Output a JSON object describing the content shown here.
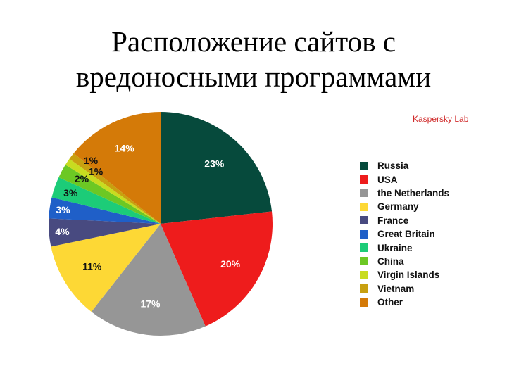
{
  "title": {
    "line1": "Расположение сайтов с",
    "line2": "вредоносными программами"
  },
  "source_label": "Kaspersky Lab",
  "chart_data": {
    "type": "pie",
    "title": "Расположение сайтов с вредоносными программами",
    "source": "Kaspersky Lab",
    "start_angle": "12 o'clock, clockwise",
    "legend_position": "right",
    "categories": [
      "Russia",
      "USA",
      "the Netherlands",
      "Germany",
      "France",
      "Great Britain",
      "Ukraine",
      "China",
      "Virgin Islands",
      "Vietnam",
      "Other"
    ],
    "values": [
      23,
      20,
      17,
      11,
      4,
      3,
      3,
      2,
      1,
      1,
      14
    ],
    "labels": [
      "23%",
      "20%",
      "17%",
      "11%",
      "4%",
      "3%",
      "3%",
      "2%",
      "1%",
      "1%",
      "14%"
    ],
    "colors": [
      "#064a3c",
      "#ee1c1c",
      "#969696",
      "#fdd835",
      "#484a80",
      "#1f5fc8",
      "#1ccc78",
      "#6cc824",
      "#c8dc20",
      "#c8a010",
      "#d47a08"
    ],
    "label_colors": [
      "#ffffff",
      "#ffffff",
      "#ffffff",
      "#111111",
      "#ffffff",
      "#ffffff",
      "#111111",
      "#111111",
      "#111111",
      "#111111",
      "#ffffff"
    ]
  },
  "legend": {
    "items": [
      {
        "label": "Russia",
        "color": "#064a3c"
      },
      {
        "label": "USA",
        "color": "#ee1c1c"
      },
      {
        "label": "the Netherlands",
        "color": "#969696"
      },
      {
        "label": "Germany",
        "color": "#fdd835"
      },
      {
        "label": "France",
        "color": "#484a80"
      },
      {
        "label": "Great Britain",
        "color": "#1f5fc8"
      },
      {
        "label": "Ukraine",
        "color": "#1ccc78"
      },
      {
        "label": "China",
        "color": "#6cc824"
      },
      {
        "label": "Virgin Islands",
        "color": "#c8dc20"
      },
      {
        "label": "Vietnam",
        "color": "#c8a010"
      },
      {
        "label": "Other",
        "color": "#d47a08"
      }
    ]
  }
}
